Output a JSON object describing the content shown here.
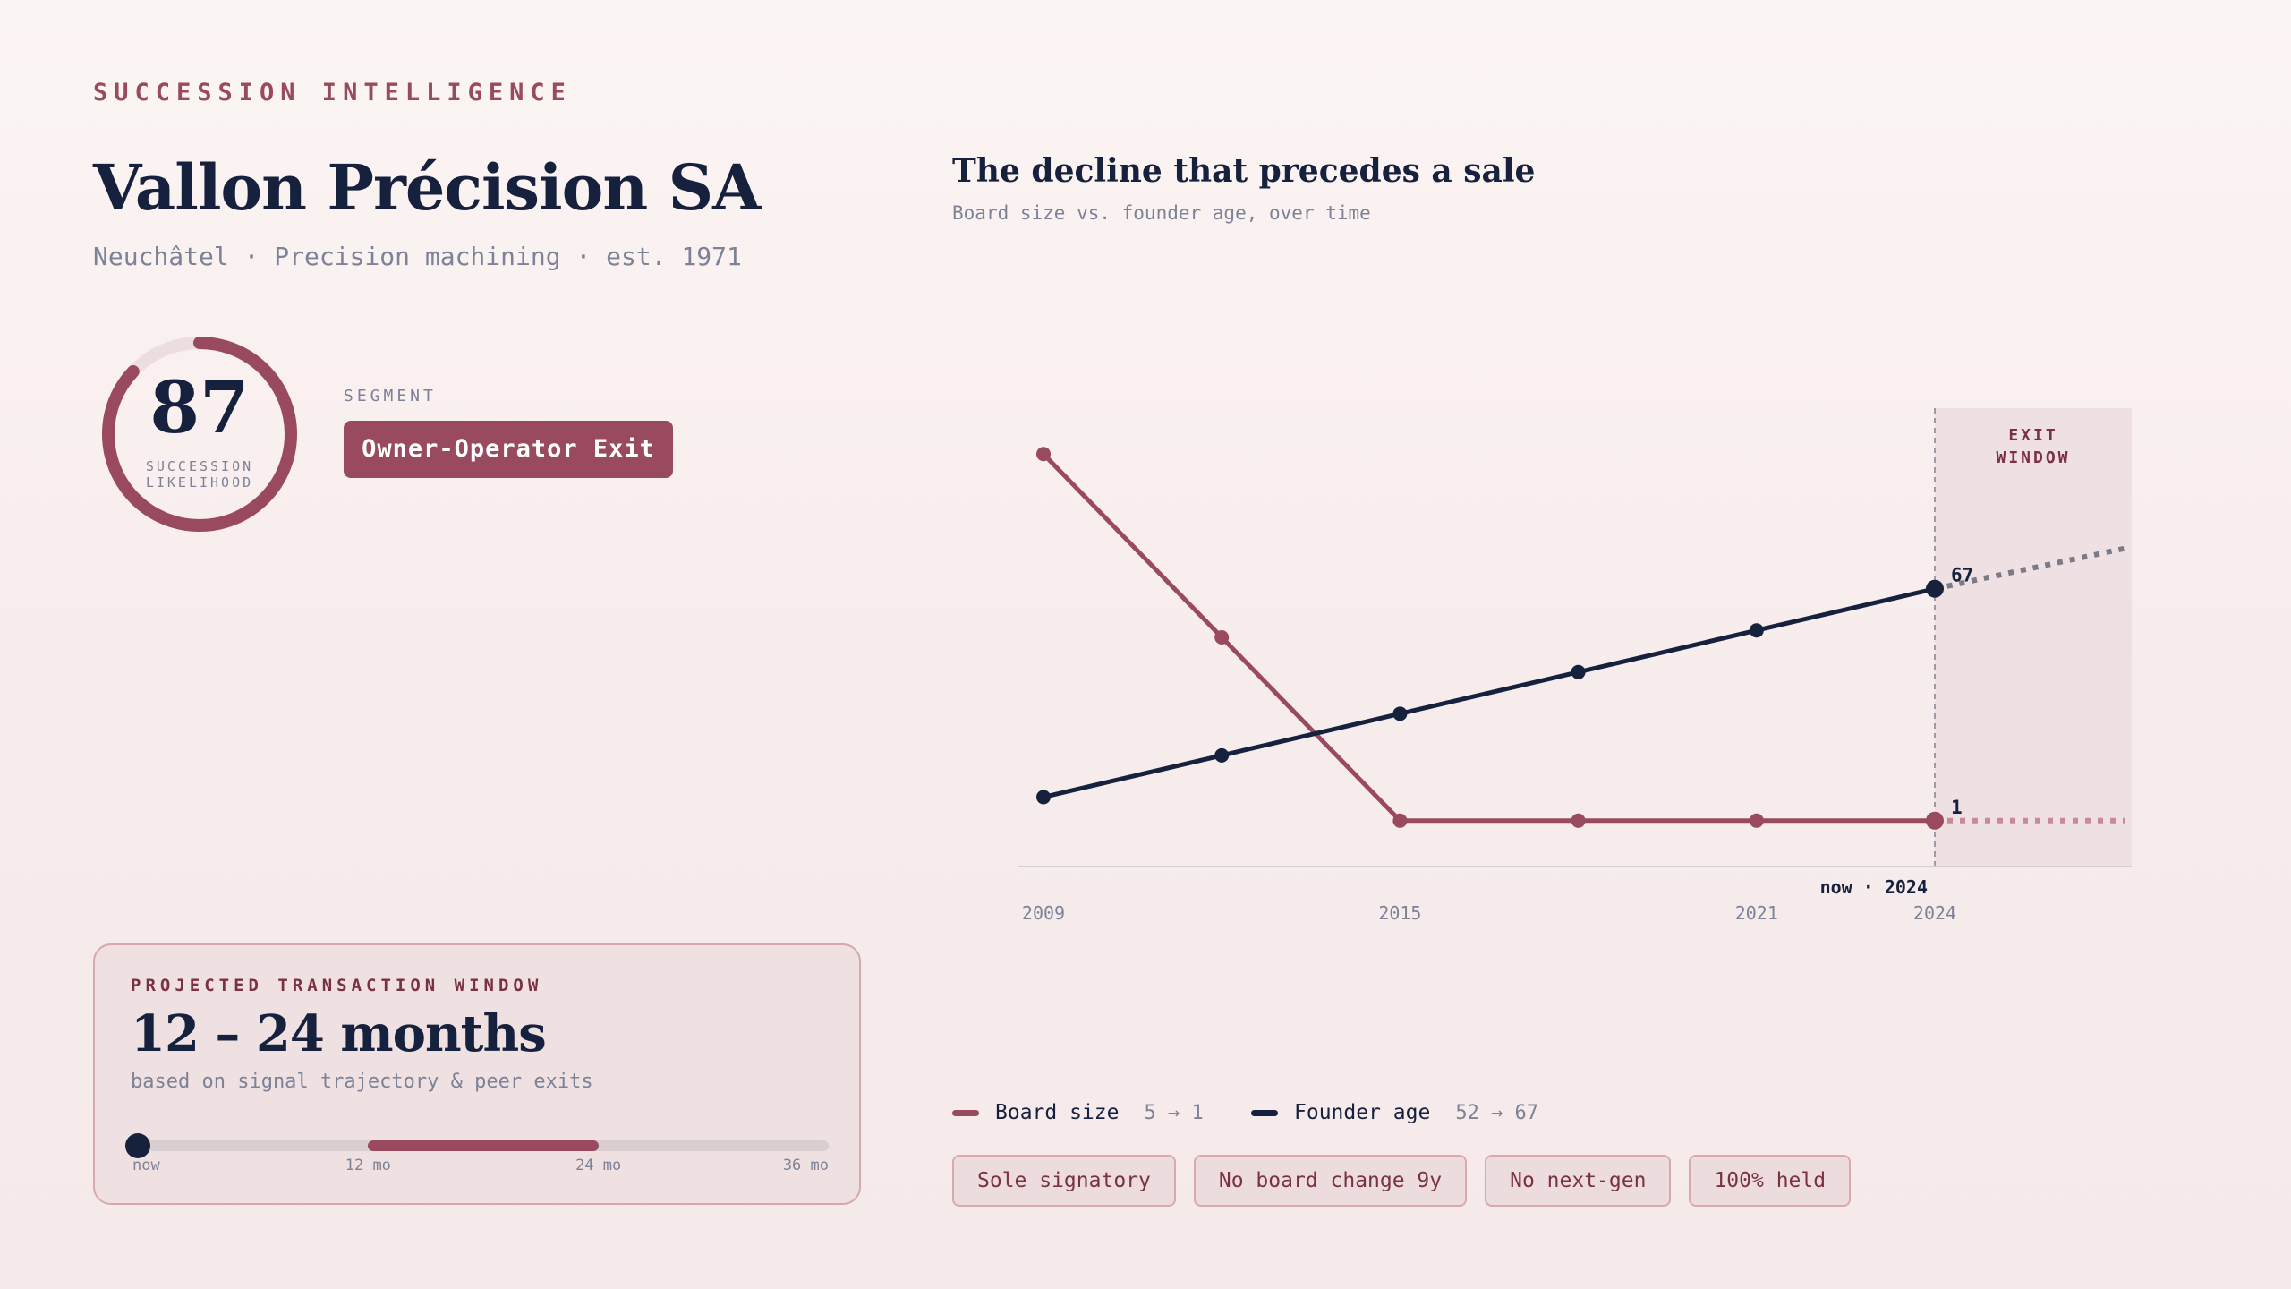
{
  "header": {
    "eyebrow": "SUCCESSION INTELLIGENCE",
    "company": "Vallon Précision SA",
    "subline": "Neuchâtel · Precision machining · est. 1971"
  },
  "score": {
    "value": 87,
    "max": 100,
    "label": "SUCCESSION LIKELIHOOD"
  },
  "segment": {
    "label": "SEGMENT",
    "value": "Owner-Operator Exit"
  },
  "transaction_window": {
    "eyebrow": "PROJECTED TRANSACTION WINDOW",
    "value": "12 – 24 months",
    "note": "based on signal trajectory & peer exits",
    "range_months": [
      12,
      24
    ],
    "scale_max_months": 36,
    "current_months": 0,
    "ticks": [
      "now",
      "12 mo",
      "24 mo",
      "36 mo"
    ]
  },
  "chart": {
    "title": "The decline that precedes a sale",
    "subtitle": "Board size vs. founder age, over time"
  },
  "chart_data": {
    "type": "line",
    "x": [
      2009,
      2012,
      2015,
      2018,
      2021,
      2024
    ],
    "xlim": [
      2009,
      2027.3
    ],
    "x_ticks": [
      "2009",
      "2015",
      "2021",
      "2024"
    ],
    "now_label": "now · 2024",
    "exit_window_label": [
      "EXIT",
      "WINDOW"
    ],
    "series": [
      {
        "name": "Board size",
        "values": [
          5,
          3,
          1,
          1,
          1,
          1
        ],
        "projection": [
          1,
          1
        ],
        "projection_x": [
          2024,
          2027.2
        ],
        "end_label": "1",
        "ylim": [
          0.5,
          5.5
        ],
        "range_label": "5 → 1",
        "color": "#9a4a5e"
      },
      {
        "name": "Founder age",
        "values": [
          52,
          55,
          58,
          61,
          64,
          67
        ],
        "projection": [
          67,
          70
        ],
        "projection_x": [
          2024,
          2027.3
        ],
        "end_label": "67",
        "ylim": [
          47,
          80
        ],
        "range_label": "52 → 67",
        "color": "#16213d"
      }
    ],
    "grid": false,
    "legend": "bottom-left"
  },
  "signals": [
    "Sole signatory",
    "No board change 9y",
    "No next-gen",
    "100% held"
  ]
}
